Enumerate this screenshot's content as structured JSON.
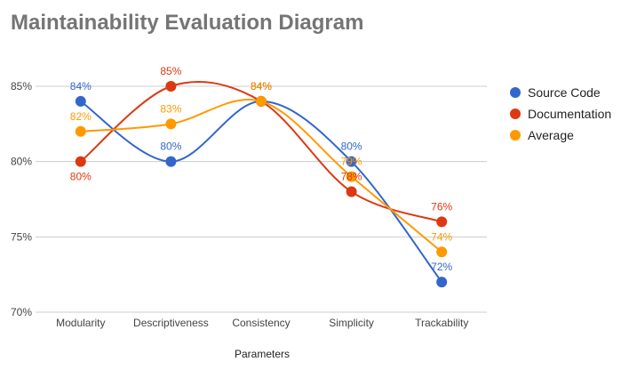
{
  "colors": {
    "source_code": "#3366cc",
    "documentation": "#dc3912",
    "average": "#ff9900",
    "gridline": "#cccccc",
    "title": "#757575"
  },
  "chart_data": {
    "type": "line",
    "title": "Maintainability Evaluation Diagram",
    "xlabel": "Parameters",
    "ylabel": "",
    "categories": [
      "Modularity",
      "Descriptiveness",
      "Consistency",
      "Simplicity",
      "Trackability"
    ],
    "ylim": [
      70,
      85
    ],
    "yticks": [
      "70%",
      "75%",
      "80%",
      "85%"
    ],
    "grid": true,
    "smooth": true,
    "legend_position": "right",
    "series": [
      {
        "name": "Source Code",
        "values": [
          84,
          80,
          84,
          80,
          72
        ],
        "labels": [
          "84%",
          "80%",
          "84%",
          "80%",
          "72%"
        ]
      },
      {
        "name": "Documentation",
        "values": [
          80,
          85,
          84,
          78,
          76
        ],
        "labels": [
          "80%",
          "85%",
          "84%",
          "78%",
          "76%"
        ]
      },
      {
        "name": "Average",
        "values": [
          82,
          82.5,
          84,
          79,
          74
        ],
        "labels": [
          "82%",
          "83%",
          "84%",
          "79%",
          "74%"
        ]
      }
    ]
  }
}
